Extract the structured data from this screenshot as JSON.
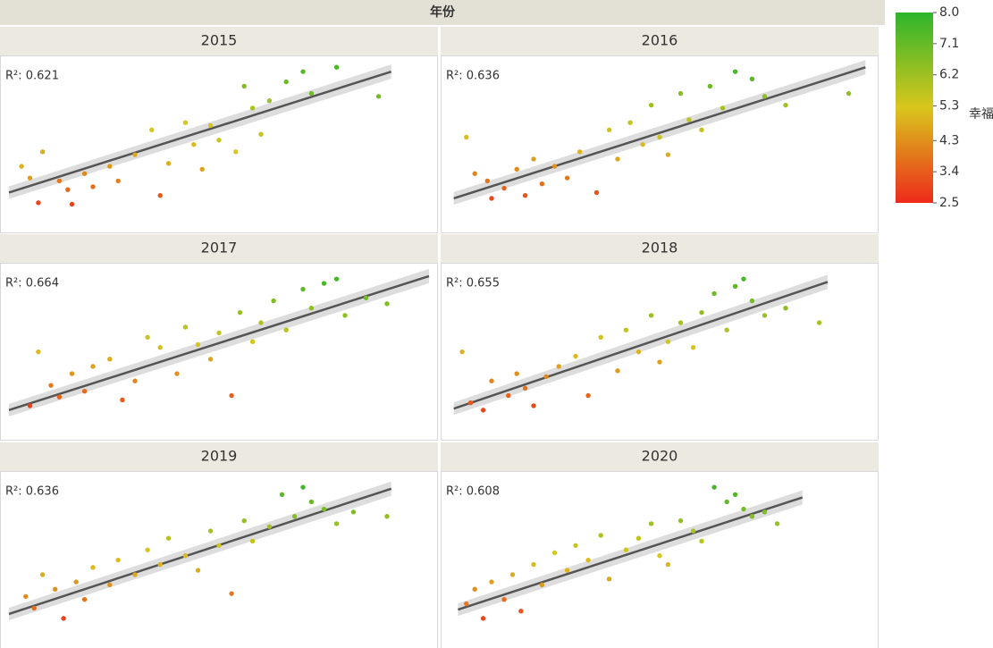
{
  "chart_data": {
    "type": "scatter",
    "facet_title": "年份",
    "xlim": [
      0,
      100
    ],
    "ylim": [
      0,
      100
    ],
    "colorbar": {
      "label": "幸福",
      "lim": [
        2.5,
        8.0
      ],
      "ticks": [
        {
          "value": 8,
          "label": "8.0"
        },
        7.1,
        6.2,
        5.3,
        4.3,
        3.4,
        2.5
      ],
      "colors": [
        "#ee2a1b",
        "#d9c61d",
        "#2db52b"
      ]
    },
    "panels": [
      {
        "title": "2015",
        "annotation": "R²: 0.621",
        "x": [
          3,
          5,
          7,
          8,
          12,
          14,
          15,
          18,
          20,
          24,
          26,
          30,
          34,
          36,
          38,
          42,
          44,
          46,
          48,
          50,
          54,
          56,
          58,
          60,
          62,
          66,
          70,
          72,
          78,
          88
        ],
        "y": [
          30,
          22,
          5,
          40,
          20,
          14,
          4,
          25,
          16,
          30,
          20,
          38,
          55,
          10,
          32,
          60,
          45,
          28,
          58,
          48,
          40,
          85,
          70,
          52,
          75,
          88,
          95,
          80,
          98,
          78
        ],
        "score": [
          4.9,
          4.5,
          3.0,
          4.8,
          3.9,
          3.6,
          2.9,
          4.2,
          3.7,
          4.4,
          4.0,
          4.7,
          5.3,
          3.3,
          4.8,
          5.2,
          5.0,
          4.6,
          5.4,
          5.5,
          5.3,
          6.6,
          6.1,
          5.6,
          6.2,
          7.0,
          7.4,
          7.0,
          7.5,
          6.8
        ],
        "trendline": {
          "x": [
            0,
            91
          ],
          "y": [
            12,
            95
          ]
        }
      },
      {
        "title": "2016",
        "annotation": "R²: 0.636",
        "x": [
          4,
          6,
          9,
          10,
          13,
          16,
          18,
          20,
          22,
          25,
          28,
          31,
          35,
          38,
          40,
          43,
          46,
          48,
          50,
          52,
          55,
          57,
          60,
          62,
          65,
          68,
          72,
          75,
          80,
          95
        ],
        "y": [
          50,
          25,
          20,
          8,
          15,
          28,
          10,
          35,
          18,
          30,
          22,
          40,
          12,
          55,
          35,
          60,
          45,
          72,
          50,
          38,
          80,
          62,
          55,
          85,
          70,
          95,
          90,
          78,
          72,
          80
        ],
        "score": [
          5.1,
          4.1,
          3.8,
          3.0,
          3.5,
          4.2,
          3.3,
          4.6,
          3.7,
          4.3,
          3.9,
          4.9,
          3.2,
          5.4,
          4.7,
          5.6,
          5.0,
          6.2,
          5.5,
          4.8,
          6.6,
          5.8,
          5.6,
          7.0,
          6.1,
          7.6,
          7.3,
          6.5,
          6.2,
          6.4
        ],
        "trendline": {
          "x": [
            1,
            99
          ],
          "y": [
            8,
            98
          ]
        }
      },
      {
        "title": "2017",
        "annotation": "R²: 0.664",
        "x": [
          5,
          7,
          10,
          12,
          15,
          18,
          20,
          24,
          27,
          30,
          33,
          36,
          40,
          42,
          45,
          48,
          50,
          53,
          55,
          58,
          60,
          63,
          66,
          70,
          72,
          75,
          78,
          80,
          85,
          90
        ],
        "y": [
          8,
          45,
          22,
          14,
          30,
          18,
          35,
          40,
          12,
          25,
          55,
          48,
          30,
          62,
          50,
          40,
          58,
          15,
          72,
          52,
          65,
          80,
          60,
          88,
          75,
          92,
          95,
          70,
          82,
          78
        ],
        "score": [
          2.9,
          5.0,
          3.9,
          3.5,
          4.4,
          3.6,
          4.6,
          4.8,
          3.3,
          4.1,
          5.5,
          5.1,
          4.3,
          5.8,
          5.2,
          4.7,
          5.6,
          3.4,
          6.3,
          5.4,
          5.9,
          6.7,
          5.8,
          7.2,
          6.5,
          7.5,
          7.6,
          6.4,
          6.9,
          6.7
        ],
        "trendline": {
          "x": [
            0,
            100
          ],
          "y": [
            5,
            97
          ]
        }
      },
      {
        "title": "2018",
        "annotation": "R²: 0.655",
        "x": [
          3,
          5,
          8,
          10,
          14,
          16,
          18,
          20,
          23,
          26,
          30,
          33,
          36,
          40,
          42,
          45,
          48,
          50,
          52,
          55,
          58,
          60,
          63,
          66,
          68,
          70,
          72,
          75,
          80,
          88
        ],
        "y": [
          45,
          10,
          5,
          25,
          15,
          30,
          20,
          8,
          28,
          35,
          42,
          15,
          55,
          32,
          60,
          45,
          70,
          38,
          52,
          65,
          48,
          72,
          85,
          60,
          90,
          95,
          80,
          70,
          75,
          65
        ],
        "score": [
          4.9,
          3.3,
          3.0,
          4.1,
          3.5,
          4.3,
          3.8,
          3.1,
          4.2,
          4.6,
          5.0,
          3.5,
          5.4,
          4.5,
          5.7,
          4.9,
          6.3,
          4.6,
          5.4,
          6.0,
          5.2,
          6.4,
          7.0,
          5.9,
          7.3,
          7.6,
          6.9,
          6.3,
          6.5,
          6.0
        ],
        "trendline": {
          "x": [
            1,
            90
          ],
          "y": [
            6,
            93
          ]
        }
      },
      {
        "title": "2019",
        "annotation": "R²: 0.636",
        "x": [
          4,
          6,
          8,
          11,
          13,
          16,
          18,
          20,
          24,
          26,
          30,
          33,
          36,
          38,
          42,
          45,
          48,
          50,
          53,
          56,
          58,
          62,
          65,
          68,
          70,
          72,
          75,
          78,
          82,
          90
        ],
        "y": [
          20,
          12,
          35,
          25,
          5,
          30,
          18,
          40,
          28,
          45,
          35,
          52,
          42,
          60,
          48,
          38,
          65,
          55,
          22,
          72,
          58,
          68,
          90,
          75,
          95,
          85,
          80,
          70,
          78,
          75
        ],
        "score": [
          4.2,
          3.7,
          4.8,
          4.3,
          2.9,
          4.4,
          3.8,
          5.0,
          4.3,
          5.1,
          4.7,
          5.3,
          4.9,
          5.8,
          5.0,
          4.8,
          6.0,
          5.4,
          3.9,
          6.4,
          5.6,
          6.1,
          7.3,
          6.6,
          7.7,
          7.1,
          6.8,
          6.3,
          6.7,
          6.4
        ],
        "trendline": {
          "x": [
            0,
            91
          ],
          "y": [
            8,
            94
          ]
        }
      },
      {
        "title": "2020",
        "annotation": "R²: 0.608",
        "x": [
          4,
          6,
          8,
          10,
          13,
          15,
          17,
          20,
          22,
          25,
          28,
          30,
          33,
          36,
          38,
          42,
          45,
          48,
          50,
          52,
          55,
          58,
          60,
          63,
          66,
          68,
          70,
          72,
          75,
          78
        ],
        "y": [
          15,
          25,
          5,
          30,
          18,
          35,
          10,
          42,
          28,
          50,
          38,
          55,
          45,
          62,
          32,
          52,
          60,
          70,
          48,
          42,
          72,
          65,
          58,
          95,
          85,
          90,
          80,
          75,
          78,
          70
        ],
        "score": [
          3.9,
          4.3,
          3.0,
          4.6,
          3.7,
          4.8,
          3.3,
          5.0,
          4.4,
          5.3,
          4.9,
          5.5,
          5.1,
          5.9,
          4.7,
          5.4,
          5.7,
          6.2,
          5.3,
          5.0,
          6.4,
          6.0,
          5.7,
          7.6,
          7.1,
          7.4,
          6.9,
          6.6,
          6.7,
          6.3
        ],
        "trendline": {
          "x": [
            2,
            84
          ],
          "y": [
            11,
            88
          ]
        }
      }
    ]
  }
}
